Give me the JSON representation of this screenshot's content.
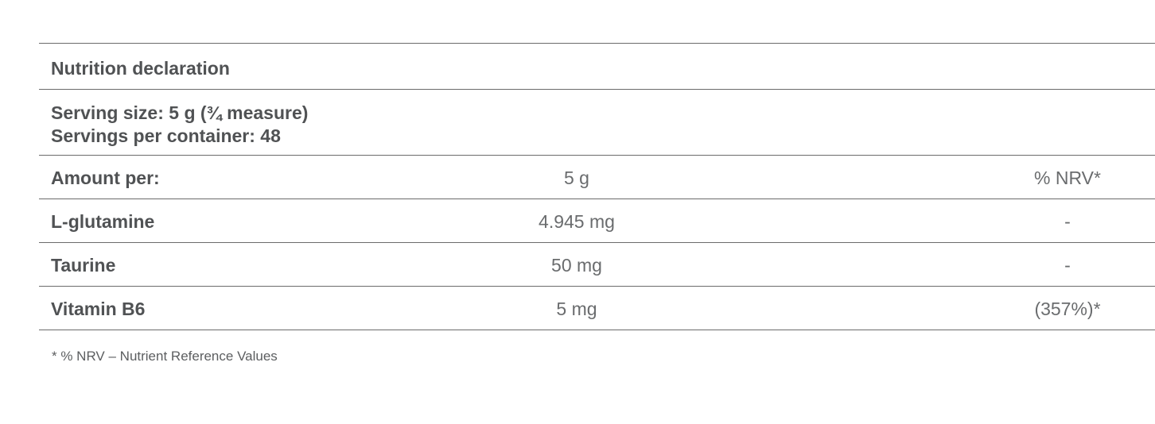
{
  "title": "Nutrition declaration",
  "serving": {
    "size_line": "Serving size: 5 g (¾ measure)",
    "per_container_line": "Servings per container: 48"
  },
  "header_row": {
    "label": "Amount per:",
    "amount": "5 g",
    "nrv": "% NRV*"
  },
  "rows": [
    {
      "name": "L-glutamine",
      "amount": "4.945 mg",
      "nrv": "-"
    },
    {
      "name": "Taurine",
      "amount": "50 mg",
      "nrv": "-"
    },
    {
      "name": "Vitamin B6",
      "amount": "5 mg",
      "nrv": "(357%)*"
    }
  ],
  "footnote": "*  % NRV – Nutrient Reference Values"
}
